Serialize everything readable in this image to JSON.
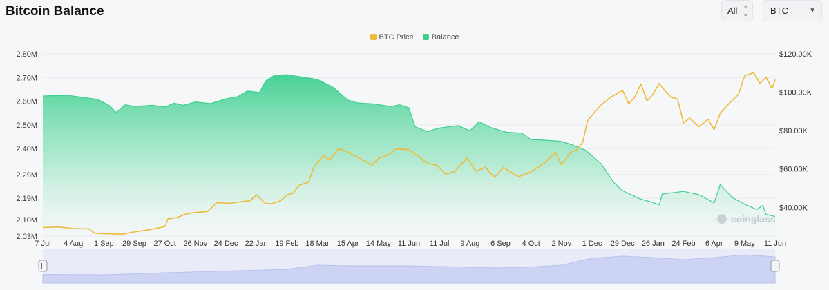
{
  "header": {
    "title": "Bitcoin Balance",
    "range_label": "All",
    "range_icon": "up-down-chevron-icon",
    "currency_label": "BTC",
    "currency_icon": "caret-down-icon"
  },
  "watermark": "coinglass",
  "colors": {
    "price": "#f0b93a",
    "balance": "#3ecf8e",
    "navigator": "#ccd3f3"
  },
  "chart_data": {
    "type": "line",
    "legend": [
      {
        "name": "BTC Price",
        "color": "#f0b93a"
      },
      {
        "name": "Balance",
        "color": "#3ecf8e"
      }
    ],
    "legend_position": "top-center",
    "x_tick_labels": [
      "7 Jul",
      "4 Aug",
      "1 Sep",
      "29 Sep",
      "27 Oct",
      "26 Nov",
      "24 Dec",
      "22 Jan",
      "19 Feb",
      "18 Mar",
      "15 Apr",
      "14 May",
      "11 Jun",
      "11 Jul",
      "9 Aug",
      "6 Sep",
      "4 Oct",
      "2 Nov",
      "1 Dec",
      "29 Dec",
      "26 Jan",
      "24 Feb",
      "6 Apr",
      "9 May",
      "11 Jun"
    ],
    "y_left_ticks": [
      "2.80M",
      "2.70M",
      "2.60M",
      "2.50M",
      "2.40M",
      "2.29M",
      "2.19M",
      "2.10M",
      "2.03M"
    ],
    "y_right_ticks": [
      "$120.00K",
      "$100.00K",
      "$80.00K",
      "$60.00K",
      "$40.00K"
    ],
    "y_left_range": [
      2.03,
      2.8
    ],
    "y_left_unit": "M",
    "y_right_range": [
      25,
      120
    ],
    "y_right_unit": "K USD",
    "x_range": [
      0,
      24
    ],
    "series": [
      {
        "name": "Balance",
        "type": "area",
        "axis": "left",
        "points": [
          [
            0,
            2.622
          ],
          [
            0.8,
            2.625
          ],
          [
            1.2,
            2.618
          ],
          [
            1.8,
            2.608
          ],
          [
            2.2,
            2.58
          ],
          [
            2.4,
            2.553
          ],
          [
            2.7,
            2.585
          ],
          [
            3,
            2.578
          ],
          [
            3.6,
            2.583
          ],
          [
            4,
            2.575
          ],
          [
            4.3,
            2.592
          ],
          [
            4.6,
            2.583
          ],
          [
            5,
            2.597
          ],
          [
            5.5,
            2.59
          ],
          [
            6,
            2.61
          ],
          [
            6.4,
            2.62
          ],
          [
            6.7,
            2.643
          ],
          [
            7.1,
            2.637
          ],
          [
            7.3,
            2.685
          ],
          [
            7.6,
            2.71
          ],
          [
            8,
            2.712
          ],
          [
            8.5,
            2.702
          ],
          [
            9,
            2.692
          ],
          [
            9.5,
            2.66
          ],
          [
            10,
            2.605
          ],
          [
            10.3,
            2.593
          ],
          [
            10.8,
            2.589
          ],
          [
            11.4,
            2.578
          ],
          [
            11.7,
            2.585
          ],
          [
            12,
            2.572
          ],
          [
            12.2,
            2.492
          ],
          [
            12.6,
            2.472
          ],
          [
            13,
            2.487
          ],
          [
            13.6,
            2.497
          ],
          [
            14,
            2.475
          ],
          [
            14.3,
            2.513
          ],
          [
            14.7,
            2.488
          ],
          [
            15.2,
            2.469
          ],
          [
            15.7,
            2.465
          ],
          [
            16,
            2.438
          ],
          [
            16.5,
            2.435
          ],
          [
            17,
            2.43
          ],
          [
            17.3,
            2.418
          ],
          [
            17.8,
            2.392
          ],
          [
            18.3,
            2.336
          ],
          [
            18.7,
            2.258
          ],
          [
            19,
            2.222
          ],
          [
            19.6,
            2.186
          ],
          [
            20,
            2.172
          ],
          [
            20.2,
            2.162
          ],
          [
            20.3,
            2.208
          ],
          [
            21,
            2.219
          ],
          [
            21.5,
            2.205
          ],
          [
            21.8,
            2.185
          ],
          [
            22,
            2.17
          ],
          [
            22.2,
            2.248
          ],
          [
            22.6,
            2.193
          ],
          [
            23,
            2.165
          ],
          [
            23.4,
            2.143
          ],
          [
            23.6,
            2.16
          ],
          [
            23.7,
            2.122
          ],
          [
            24,
            2.113
          ]
        ]
      },
      {
        "name": "BTC Price",
        "type": "line",
        "axis": "right",
        "points": [
          [
            0,
            29.5
          ],
          [
            0.5,
            29.8
          ],
          [
            1,
            29
          ],
          [
            1.5,
            28.8
          ],
          [
            1.7,
            26.5
          ],
          [
            2,
            26.3
          ],
          [
            2.6,
            26
          ],
          [
            3,
            27.2
          ],
          [
            3.5,
            28.4
          ],
          [
            4,
            30
          ],
          [
            4.1,
            34
          ],
          [
            4.4,
            34.7
          ],
          [
            4.7,
            36.6
          ],
          [
            5,
            37.3
          ],
          [
            5.4,
            37.9
          ],
          [
            5.7,
            42.5
          ],
          [
            6.1,
            42.1
          ],
          [
            6.5,
            43
          ],
          [
            6.8,
            43.5
          ],
          [
            7,
            46.5
          ],
          [
            7.3,
            42
          ],
          [
            7.5,
            41.9
          ],
          [
            7.8,
            43.5
          ],
          [
            8,
            46.5
          ],
          [
            8.2,
            47.3
          ],
          [
            8.4,
            51.6
          ],
          [
            8.7,
            53.1
          ],
          [
            8.9,
            61.5
          ],
          [
            9.2,
            67
          ],
          [
            9.4,
            64.6
          ],
          [
            9.7,
            70.6
          ],
          [
            10,
            68.8
          ],
          [
            10.4,
            65.4
          ],
          [
            10.8,
            62
          ],
          [
            11,
            65.6
          ],
          [
            11.3,
            67.2
          ],
          [
            11.6,
            70.5
          ],
          [
            12,
            70
          ],
          [
            12.3,
            66.8
          ],
          [
            12.6,
            63
          ],
          [
            12.9,
            62
          ],
          [
            13.2,
            57.4
          ],
          [
            13.5,
            58.6
          ],
          [
            13.9,
            65.8
          ],
          [
            14.2,
            58.7
          ],
          [
            14.5,
            60.9
          ],
          [
            14.8,
            55.7
          ],
          [
            15.1,
            60.8
          ],
          [
            15.4,
            57.7
          ],
          [
            15.6,
            56
          ],
          [
            16,
            58.5
          ],
          [
            16.4,
            62.6
          ],
          [
            16.8,
            68.6
          ],
          [
            17,
            62.3
          ],
          [
            17.3,
            68.6
          ],
          [
            17.5,
            70
          ],
          [
            17.7,
            74.1
          ],
          [
            17.85,
            85
          ],
          [
            18,
            88
          ],
          [
            18.3,
            93.4
          ],
          [
            18.6,
            97.3
          ],
          [
            19,
            101
          ],
          [
            19.2,
            94
          ],
          [
            19.4,
            97.4
          ],
          [
            19.6,
            104.4
          ],
          [
            19.8,
            95.5
          ],
          [
            20,
            99
          ],
          [
            20.2,
            104.6
          ],
          [
            20.4,
            100.5
          ],
          [
            20.6,
            97.4
          ],
          [
            20.8,
            96.5
          ],
          [
            21,
            84
          ],
          [
            21.2,
            86.5
          ],
          [
            21.5,
            82
          ],
          [
            21.8,
            86
          ],
          [
            22,
            80.5
          ],
          [
            22.2,
            89
          ],
          [
            22.5,
            94.3
          ],
          [
            22.8,
            99
          ],
          [
            23,
            108.5
          ],
          [
            23.3,
            110.2
          ],
          [
            23.5,
            104.6
          ],
          [
            23.7,
            107.8
          ],
          [
            23.9,
            101.9
          ],
          [
            24,
            106.6
          ]
        ]
      }
    ],
    "navigator_points": [
      [
        0,
        0.25
      ],
      [
        2,
        0.24
      ],
      [
        4,
        0.3
      ],
      [
        6,
        0.35
      ],
      [
        8,
        0.4
      ],
      [
        9,
        0.52
      ],
      [
        10,
        0.5
      ],
      [
        12,
        0.5
      ],
      [
        13,
        0.48
      ],
      [
        15,
        0.44
      ],
      [
        16,
        0.47
      ],
      [
        17,
        0.52
      ],
      [
        18,
        0.72
      ],
      [
        19,
        0.78
      ],
      [
        20,
        0.74
      ],
      [
        21,
        0.68
      ],
      [
        22,
        0.74
      ],
      [
        23,
        0.82
      ],
      [
        24,
        0.76
      ]
    ]
  }
}
